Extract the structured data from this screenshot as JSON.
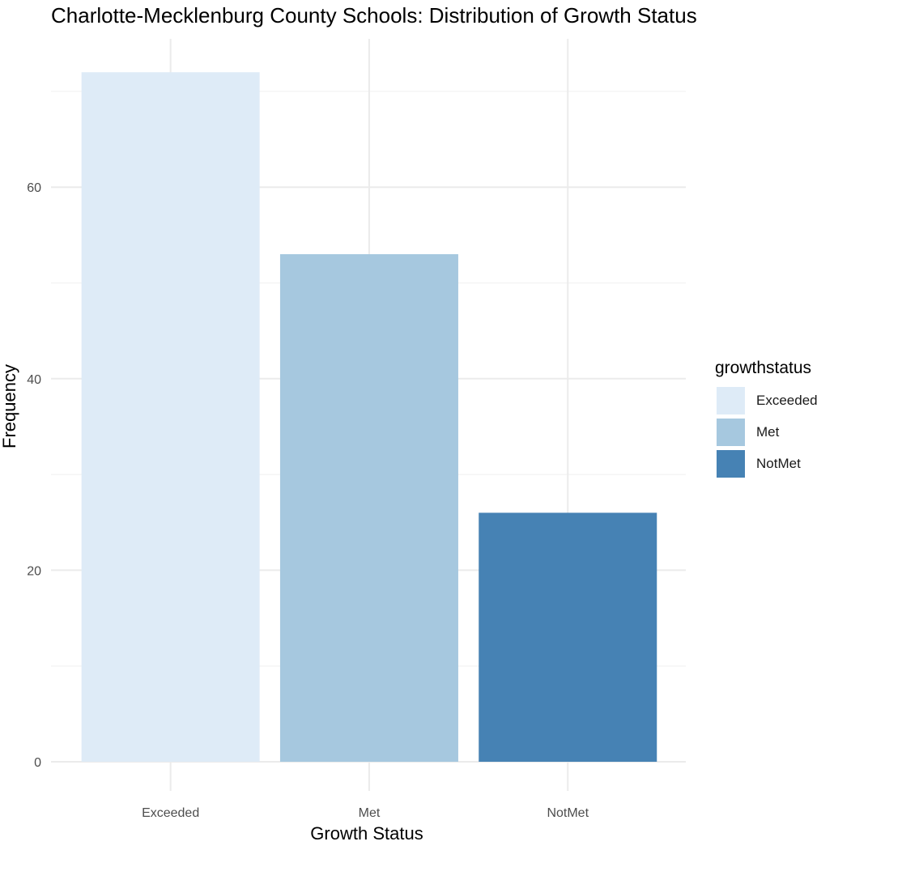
{
  "chart_data": {
    "type": "bar",
    "title": "Charlotte-Mecklenburg County Schools: Distribution of Growth Status",
    "xlabel": "Growth Status",
    "ylabel": "Frequency",
    "categories": [
      "Exceeded",
      "Met",
      "NotMet"
    ],
    "values": [
      72,
      53,
      26
    ],
    "colors": [
      "#deebf7",
      "#a6c8df",
      "#4682b4"
    ],
    "ylim": [
      0,
      75
    ],
    "yticks": [
      0,
      20,
      40,
      60
    ],
    "yminor": [
      10,
      30,
      50,
      70
    ],
    "grid": true,
    "legend": {
      "title": "growthstatus",
      "position": "right",
      "entries": [
        "Exceeded",
        "Met",
        "NotMet"
      ]
    }
  }
}
